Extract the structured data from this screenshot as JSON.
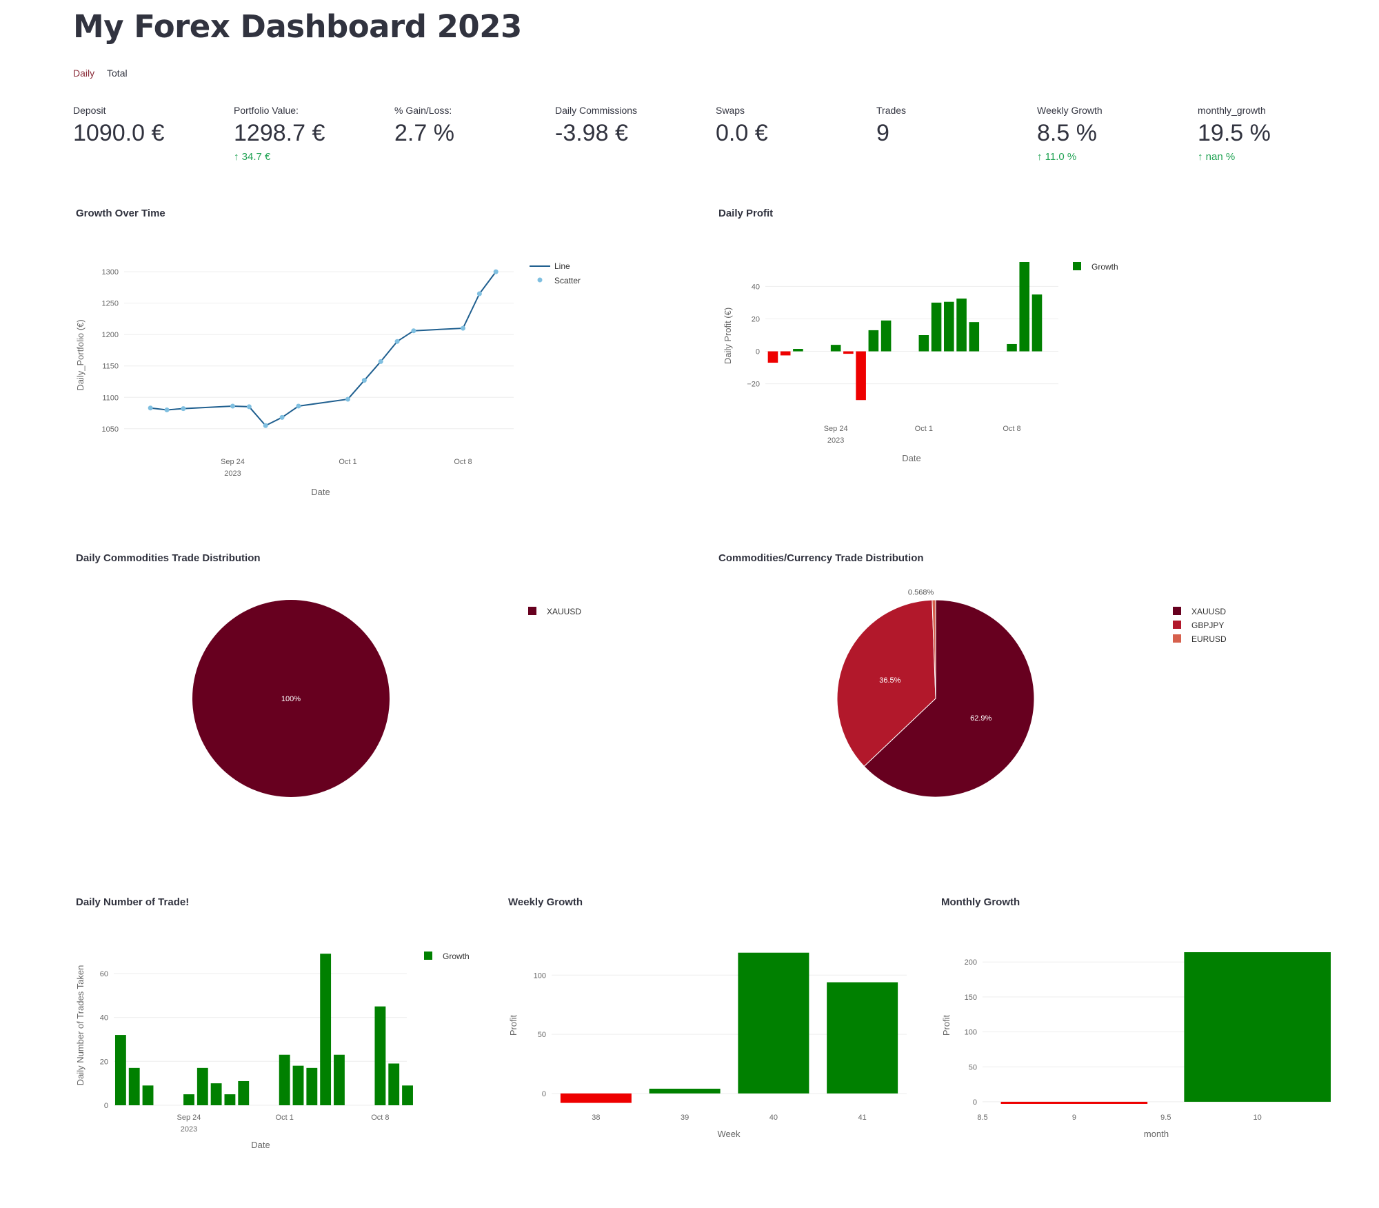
{
  "page": {
    "title": "My Forex Dashboard 2023"
  },
  "tabs": [
    {
      "label": "Daily"
    },
    {
      "label": "Total"
    }
  ],
  "metrics": [
    {
      "label": "Deposit",
      "value": "1090.0 €",
      "delta": ""
    },
    {
      "label": "Portfolio Value:",
      "value": "1298.7 €",
      "delta": "34.7 €"
    },
    {
      "label": "% Gain/Loss:",
      "value": "2.7 %",
      "delta": ""
    },
    {
      "label": "Daily Commissions",
      "value": "-3.98 €",
      "delta": ""
    },
    {
      "label": "Swaps",
      "value": "0.0 €",
      "delta": ""
    },
    {
      "label": "Trades",
      "value": "9",
      "delta": ""
    },
    {
      "label": "Weekly Growth",
      "value": "8.5 %",
      "delta": "11.0 %"
    },
    {
      "label": "monthly_growth",
      "value": "19.5 %",
      "delta": "nan %"
    }
  ],
  "colors": {
    "green": "#008000",
    "red": "#ee0000",
    "line": "#1f5f8f",
    "scatter": "#7fbfe0",
    "xauusd": "#67001f",
    "gbpjpy": "#b2182b",
    "eurusd": "#d6604d",
    "delta": "#21a354"
  },
  "chart_data": [
    {
      "id": "growth",
      "type": "line",
      "title": "Growth Over Time",
      "xlabel": "Date",
      "ylabel": "Daily_Portfolio (€)",
      "x": [
        "2023-09-19",
        "2023-09-20",
        "2023-09-21",
        "2023-09-24",
        "2023-09-25",
        "2023-09-26",
        "2023-09-27",
        "2023-09-28",
        "2023-10-01",
        "2023-10-02",
        "2023-10-03",
        "2023-10-04",
        "2023-10-05",
        "2023-10-08",
        "2023-10-09",
        "2023-10-10"
      ],
      "y": [
        1083,
        1080,
        1082,
        1086,
        1085,
        1055,
        1068,
        1086,
        1097,
        1127,
        1157,
        1189,
        1206,
        1210,
        1265,
        1300
      ],
      "xticks": [
        {
          "major": "Sep 24",
          "minor": "2023"
        },
        {
          "major": "Oct 1",
          "minor": ""
        },
        {
          "major": "Oct 8",
          "minor": ""
        }
      ],
      "yticks": [
        "1050",
        "1100",
        "1150",
        "1200",
        "1250",
        "1300"
      ],
      "ylim": [
        1030,
        1310
      ],
      "legend": [
        "Line",
        "Scatter"
      ]
    },
    {
      "id": "daily_profit",
      "type": "bar",
      "title": "Daily Profit",
      "xlabel": "Date",
      "ylabel": "Daily Profit (€)",
      "x": [
        "2023-09-19",
        "2023-09-20",
        "2023-09-21",
        "2023-09-24",
        "2023-09-25",
        "2023-09-26",
        "2023-09-27",
        "2023-09-28",
        "2023-10-01",
        "2023-10-02",
        "2023-10-03",
        "2023-10-04",
        "2023-10-05",
        "2023-10-08",
        "2023-10-09",
        "2023-10-10"
      ],
      "values": [
        -7,
        -2.5,
        1.5,
        4,
        -1.5,
        -30,
        13,
        19,
        10,
        30,
        30.5,
        32.5,
        18,
        4.5,
        55,
        35
      ],
      "xticks": [
        {
          "major": "Sep 24",
          "minor": "2023"
        },
        {
          "major": "Oct 1",
          "minor": ""
        },
        {
          "major": "Oct 8",
          "minor": ""
        }
      ],
      "yticks": [
        "−20",
        "0",
        "20",
        "40"
      ],
      "ylim": [
        -35,
        55
      ],
      "legend": [
        "Growth"
      ]
    },
    {
      "id": "daily_pie",
      "type": "pie",
      "title": "Daily Commodities Trade Distribution",
      "labels": [
        "XAUUSD"
      ],
      "values": [
        100
      ],
      "text": [
        "100%"
      ]
    },
    {
      "id": "total_pie",
      "type": "pie",
      "title": "Commodities/Currency Trade Distribution",
      "labels": [
        "XAUUSD",
        "GBPJPY",
        "EURUSD"
      ],
      "values": [
        62.9,
        36.5,
        0.568
      ],
      "text": [
        "62.9%",
        "36.5%",
        "0.568%"
      ]
    },
    {
      "id": "num_trades",
      "type": "bar",
      "title": "Daily Number of Trade!",
      "xlabel": "Date",
      "ylabel": "Daily Number of Trades Taken",
      "x": [
        "2023-09-19",
        "2023-09-20",
        "2023-09-21",
        "2023-09-24",
        "2023-09-25",
        "2023-09-26",
        "2023-09-27",
        "2023-09-28",
        "2023-10-01",
        "2023-10-02",
        "2023-10-03",
        "2023-10-04",
        "2023-10-05",
        "2023-10-08",
        "2023-10-09",
        "2023-10-10"
      ],
      "values": [
        32,
        17,
        9,
        5,
        17,
        10,
        5,
        11,
        23,
        18,
        17,
        69,
        23,
        45,
        19,
        9
      ],
      "xticks": [
        {
          "major": "Sep 24",
          "minor": "2023"
        },
        {
          "major": "Oct 1",
          "minor": ""
        },
        {
          "major": "Oct 8",
          "minor": ""
        }
      ],
      "yticks": [
        "0",
        "20",
        "40",
        "60"
      ],
      "ylim": [
        0,
        70
      ],
      "legend": [
        "Growth"
      ]
    },
    {
      "id": "weekly",
      "type": "bar",
      "title": "Weekly Growth",
      "xlabel": "Week",
      "ylabel": "Profit",
      "categories": [
        "38",
        "39",
        "40",
        "41"
      ],
      "values": [
        -8,
        4,
        119,
        94
      ],
      "yticks": [
        "0",
        "50",
        "100"
      ],
      "ylim": [
        -10,
        120
      ]
    },
    {
      "id": "monthly",
      "type": "bar",
      "title": "Monthly Growth",
      "xlabel": "month",
      "ylabel": "Profit",
      "categories": [
        "9",
        "10"
      ],
      "values": [
        -3,
        214
      ],
      "xticks": [
        "8.5",
        "9",
        "9.5",
        "10"
      ],
      "yticks": [
        "0",
        "50",
        "100",
        "150",
        "200"
      ],
      "ylim": [
        -5,
        215
      ]
    }
  ]
}
